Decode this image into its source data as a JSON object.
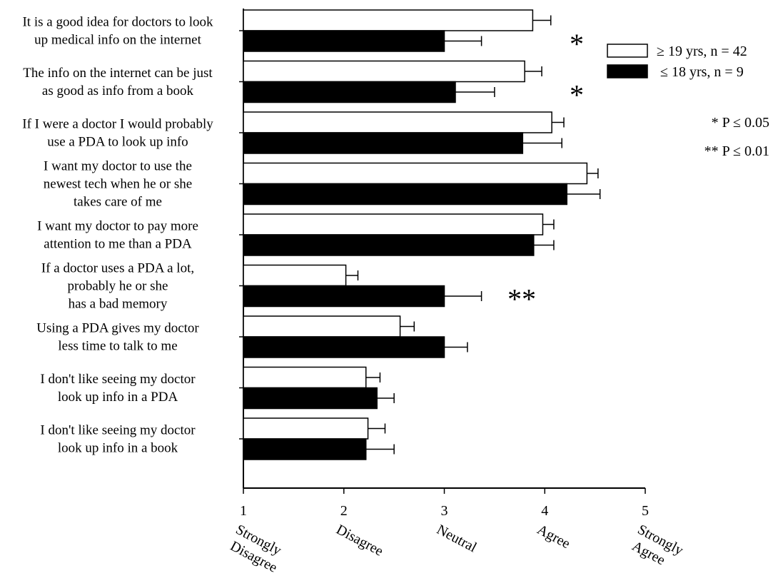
{
  "chart_data": {
    "type": "bar",
    "orientation": "horizontal",
    "categories": [
      [
        "It is a good idea for doctors to look",
        "up medical info on the internet"
      ],
      [
        "The info on the internet can be just",
        "as good as info from a book"
      ],
      [
        "If I were a doctor I would probably",
        "use a PDA to look up info"
      ],
      [
        "I want my doctor to use the",
        "newest tech when he or she",
        "takes care of me"
      ],
      [
        "I want my doctor to pay more",
        "attention to me than a PDA"
      ],
      [
        "If a doctor uses a PDA a lot,",
        "probably he or she",
        "has a bad memory"
      ],
      [
        "Using a PDA gives my doctor",
        "less time to talk to me"
      ],
      [
        "I don't like seeing my doctor",
        "look up info in a PDA"
      ],
      [
        "I don't like seeing my doctor",
        "look up info in a book"
      ]
    ],
    "series": [
      {
        "name": "≥ 19 yrs, n = 42",
        "color": "#ffffff",
        "values": [
          3.88,
          3.8,
          4.07,
          4.42,
          3.98,
          2.02,
          2.56,
          2.22,
          2.24
        ],
        "errors": [
          0.18,
          0.17,
          0.12,
          0.11,
          0.11,
          0.12,
          0.14,
          0.14,
          0.17
        ]
      },
      {
        "name": "≤ 18 yrs, n = 9",
        "color": "#000000",
        "values": [
          3.0,
          3.11,
          3.78,
          4.22,
          3.89,
          3.0,
          3.0,
          2.33,
          2.22
        ],
        "errors": [
          0.37,
          0.39,
          0.39,
          0.33,
          0.2,
          0.37,
          0.23,
          0.17,
          0.28
        ]
      }
    ],
    "significance": [
      "*",
      "*",
      "",
      "",
      "",
      "**",
      "",
      "",
      ""
    ],
    "significance_key": [
      "* P  ≤  0.05",
      "** P  ≤  0.01"
    ],
    "xlim": [
      1,
      5
    ],
    "xticks": [
      1,
      2,
      3,
      4,
      5
    ],
    "x_anchor_labels": [
      [
        "Strongly",
        "Disagree"
      ],
      [
        "Disagree"
      ],
      [
        "Neutral"
      ],
      [
        "Agree"
      ],
      [
        "Strongly",
        "Agree"
      ]
    ],
    "title": "",
    "xlabel": "",
    "ylabel": "",
    "grid": false,
    "legend_position": "top-right"
  }
}
